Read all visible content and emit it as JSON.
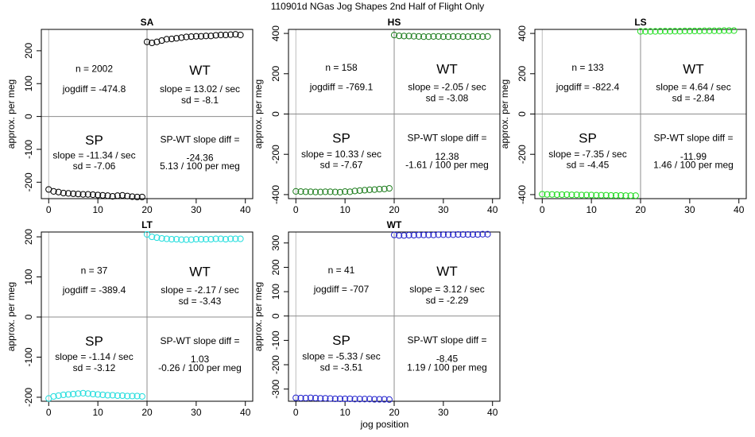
{
  "title": "110901d   NGas Jog Shapes 2nd Half of Flight Only",
  "xlabel": "jog position",
  "chart_data": [
    {
      "type": "scatter",
      "title": "SA",
      "ylabel": "approx. per meg",
      "xlim": [
        0,
        40
      ],
      "ylim": [
        -250,
        265
      ],
      "xticks": [
        "0",
        "10",
        "20",
        "30",
        "40"
      ],
      "yticks": [
        {
          "value": -200,
          "label": "-200"
        },
        {
          "value": -100,
          "label": "-100"
        },
        {
          "value": 0,
          "label": "0"
        },
        {
          "value": 100,
          "label": "100"
        },
        {
          "value": 200,
          "label": "200"
        }
      ],
      "color": "#000000",
      "n": "n = 2002",
      "jogdiff": "jogdiff = -474.8",
      "wt_label": "WT",
      "wt_slope": "slope = 13.02 / sec",
      "wt_sd": "sd = -8.1",
      "sp_label": "SP",
      "sp_slope": "slope = -11.34 / sec",
      "sp_sd": "sd = -7.06",
      "diff_label": "SP-WT slope diff =",
      "diff_value": "-24.36",
      "diff_per_meg": "5.13 / 100 per meg",
      "x": [
        0,
        1,
        2,
        3,
        4,
        5,
        6,
        7,
        8,
        9,
        10,
        11,
        12,
        13,
        14,
        15,
        16,
        17,
        18,
        19,
        20,
        21,
        22,
        23,
        24,
        25,
        26,
        27,
        28,
        29,
        30,
        31,
        32,
        33,
        34,
        35,
        36,
        37,
        38,
        39
      ],
      "y": [
        -222,
        -228,
        -230,
        -233,
        -234,
        -235,
        -236,
        -237,
        -237,
        -238,
        -239,
        -240,
        -241,
        -243,
        -241,
        -240,
        -242,
        -244,
        -245,
        -245,
        227,
        224,
        227,
        231,
        235,
        236,
        238,
        240,
        242,
        243,
        244,
        244,
        245,
        245,
        247,
        248,
        248,
        249,
        250,
        248
      ]
    },
    {
      "type": "scatter",
      "title": "HS",
      "ylabel": "approx. per meg",
      "xlim": [
        0,
        40
      ],
      "ylim": [
        -420,
        420
      ],
      "xticks": [
        "0",
        "10",
        "20",
        "30",
        "40"
      ],
      "yticks": [
        {
          "value": -400,
          "label": "-400"
        },
        {
          "value": -200,
          "label": "-200"
        },
        {
          "value": 0,
          "label": "0"
        },
        {
          "value": 200,
          "label": "200"
        },
        {
          "value": 400,
          "label": "400"
        }
      ],
      "color": "#1e7d1e",
      "n": "n = 158",
      "jogdiff": "jogdiff = -769.1",
      "wt_label": "WT",
      "wt_slope": "slope = -2.05 / sec",
      "wt_sd": "sd = -3.08",
      "sp_label": "SP",
      "sp_slope": "slope = 10.33 / sec",
      "sp_sd": "sd = -7.67",
      "diff_label": "SP-WT slope diff =",
      "diff_value": "12.38",
      "diff_per_meg": "-1.61 / 100 per meg",
      "x": [
        0,
        1,
        2,
        3,
        4,
        5,
        6,
        7,
        8,
        9,
        10,
        11,
        12,
        13,
        14,
        15,
        16,
        17,
        18,
        19,
        20,
        21,
        22,
        23,
        24,
        25,
        26,
        27,
        28,
        29,
        30,
        31,
        32,
        33,
        34,
        35,
        36,
        37,
        38,
        39
      ],
      "y": [
        -384,
        -385,
        -386,
        -386,
        -387,
        -387,
        -386,
        -386,
        -387,
        -388,
        -385,
        -386,
        -382,
        -380,
        -378,
        -376,
        -375,
        -373,
        -372,
        -369,
        392,
        388,
        387,
        387,
        386,
        385,
        384,
        384,
        385,
        385,
        384,
        384,
        385,
        385,
        384,
        384,
        385,
        385,
        384,
        385
      ]
    },
    {
      "type": "scatter",
      "title": "LS",
      "ylabel": "approx. per meg",
      "xlim": [
        0,
        40
      ],
      "ylim": [
        -420,
        420
      ],
      "xticks": [
        "0",
        "10",
        "20",
        "30",
        "40"
      ],
      "yticks": [
        {
          "value": -400,
          "label": "-400"
        },
        {
          "value": -200,
          "label": "-200"
        },
        {
          "value": 0,
          "label": "0"
        },
        {
          "value": 200,
          "label": "200"
        },
        {
          "value": 400,
          "label": "400"
        }
      ],
      "color": "#22dd22",
      "n": "n = 133",
      "jogdiff": "jogdiff = -822.4",
      "wt_label": "WT",
      "wt_slope": "slope = 4.64 / sec",
      "wt_sd": "sd = -2.84",
      "sp_label": "SP",
      "sp_slope": "slope = -7.35 / sec",
      "sp_sd": "sd = -4.45",
      "diff_label": "SP-WT slope diff =",
      "diff_value": "-11.99",
      "diff_per_meg": "1.46 / 100 per meg",
      "x": [
        0,
        1,
        2,
        3,
        4,
        5,
        6,
        7,
        8,
        9,
        10,
        11,
        12,
        13,
        14,
        15,
        16,
        17,
        18,
        19,
        20,
        21,
        22,
        23,
        24,
        25,
        26,
        27,
        28,
        29,
        30,
        31,
        32,
        33,
        34,
        35,
        36,
        37,
        38,
        39
      ],
      "y": [
        -398,
        -399,
        -399,
        -400,
        -400,
        -400,
        -401,
        -401,
        -402,
        -402,
        -402,
        -403,
        -403,
        -403,
        -404,
        -404,
        -404,
        -405,
        -405,
        -405,
        410,
        410,
        410,
        410,
        411,
        411,
        411,
        411,
        411,
        412,
        412,
        412,
        412,
        413,
        413,
        413,
        413,
        414,
        414,
        414
      ]
    },
    {
      "type": "scatter",
      "title": "LT",
      "ylabel": "approx. per meg",
      "xlim": [
        0,
        40
      ],
      "ylim": [
        -210,
        212
      ],
      "xticks": [
        "0",
        "10",
        "20",
        "30",
        "40"
      ],
      "yticks": [
        {
          "value": -200,
          "label": "-200"
        },
        {
          "value": -100,
          "label": "-100"
        },
        {
          "value": 0,
          "label": "0"
        },
        {
          "value": 100,
          "label": "100"
        },
        {
          "value": 200,
          "label": "200"
        }
      ],
      "color": "#22dddd",
      "n": "n = 37",
      "jogdiff": "jogdiff = -389.4",
      "wt_label": "WT",
      "wt_slope": "slope = -2.17 / sec",
      "wt_sd": "sd = -3.43",
      "sp_label": "SP",
      "sp_slope": "slope = -1.14 / sec",
      "sp_sd": "sd = -3.12",
      "diff_label": "SP-WT slope diff =",
      "diff_value": "1.03",
      "diff_per_meg": "-0.26 / 100 per meg",
      "x": [
        0,
        1,
        2,
        3,
        4,
        5,
        6,
        7,
        8,
        9,
        10,
        11,
        12,
        13,
        14,
        15,
        16,
        17,
        18,
        19,
        20,
        21,
        22,
        23,
        24,
        25,
        26,
        27,
        28,
        29,
        30,
        31,
        32,
        33,
        34,
        35,
        36,
        37,
        38,
        39
      ],
      "y": [
        -203,
        -198,
        -196,
        -194,
        -193,
        -192,
        -191,
        -190,
        -191,
        -192,
        -193,
        -194,
        -195,
        -195,
        -196,
        -196,
        -197,
        -197,
        -197,
        -198,
        206,
        200,
        198,
        196,
        195,
        194,
        194,
        193,
        193,
        193,
        194,
        194,
        194,
        194,
        195,
        195,
        194,
        195,
        195,
        195
      ]
    },
    {
      "type": "scatter",
      "title": "WT",
      "ylabel": "approx. per meg",
      "xlim": [
        0,
        40
      ],
      "ylim": [
        -350,
        345
      ],
      "xticks": [
        "0",
        "10",
        "20",
        "30",
        "40"
      ],
      "yticks": [
        {
          "value": -300,
          "label": "-300"
        },
        {
          "value": -200,
          "label": "-200"
        },
        {
          "value": -100,
          "label": "-100"
        },
        {
          "value": 0,
          "label": "0"
        },
        {
          "value": 100,
          "label": "100"
        },
        {
          "value": 200,
          "label": "200"
        },
        {
          "value": 300,
          "label": "300"
        }
      ],
      "color": "#2222cc",
      "n": "n = 41",
      "jogdiff": "jogdiff = -707",
      "wt_label": "WT",
      "wt_slope": "slope = 3.12 / sec",
      "wt_sd": "sd = -2.29",
      "sp_label": "SP",
      "sp_slope": "slope = -5.33 / sec",
      "sp_sd": "sd = -3.51",
      "diff_label": "SP-WT slope diff =",
      "diff_value": "-8.45",
      "diff_per_meg": "1.19 / 100 per meg",
      "x": [
        0,
        1,
        2,
        3,
        4,
        5,
        6,
        7,
        8,
        9,
        10,
        11,
        12,
        13,
        14,
        15,
        16,
        17,
        18,
        19,
        20,
        21,
        22,
        23,
        24,
        25,
        26,
        27,
        28,
        29,
        30,
        31,
        32,
        33,
        34,
        35,
        36,
        37,
        38,
        39
      ],
      "y": [
        -336,
        -337,
        -337,
        -336,
        -337,
        -338,
        -338,
        -339,
        -340,
        -340,
        -340,
        -340,
        -341,
        -341,
        -341,
        -341,
        -342,
        -342,
        -342,
        -343,
        333,
        331,
        331,
        332,
        332,
        333,
        333,
        333,
        333,
        334,
        334,
        334,
        334,
        335,
        335,
        335,
        335,
        335,
        336,
        336
      ]
    }
  ]
}
